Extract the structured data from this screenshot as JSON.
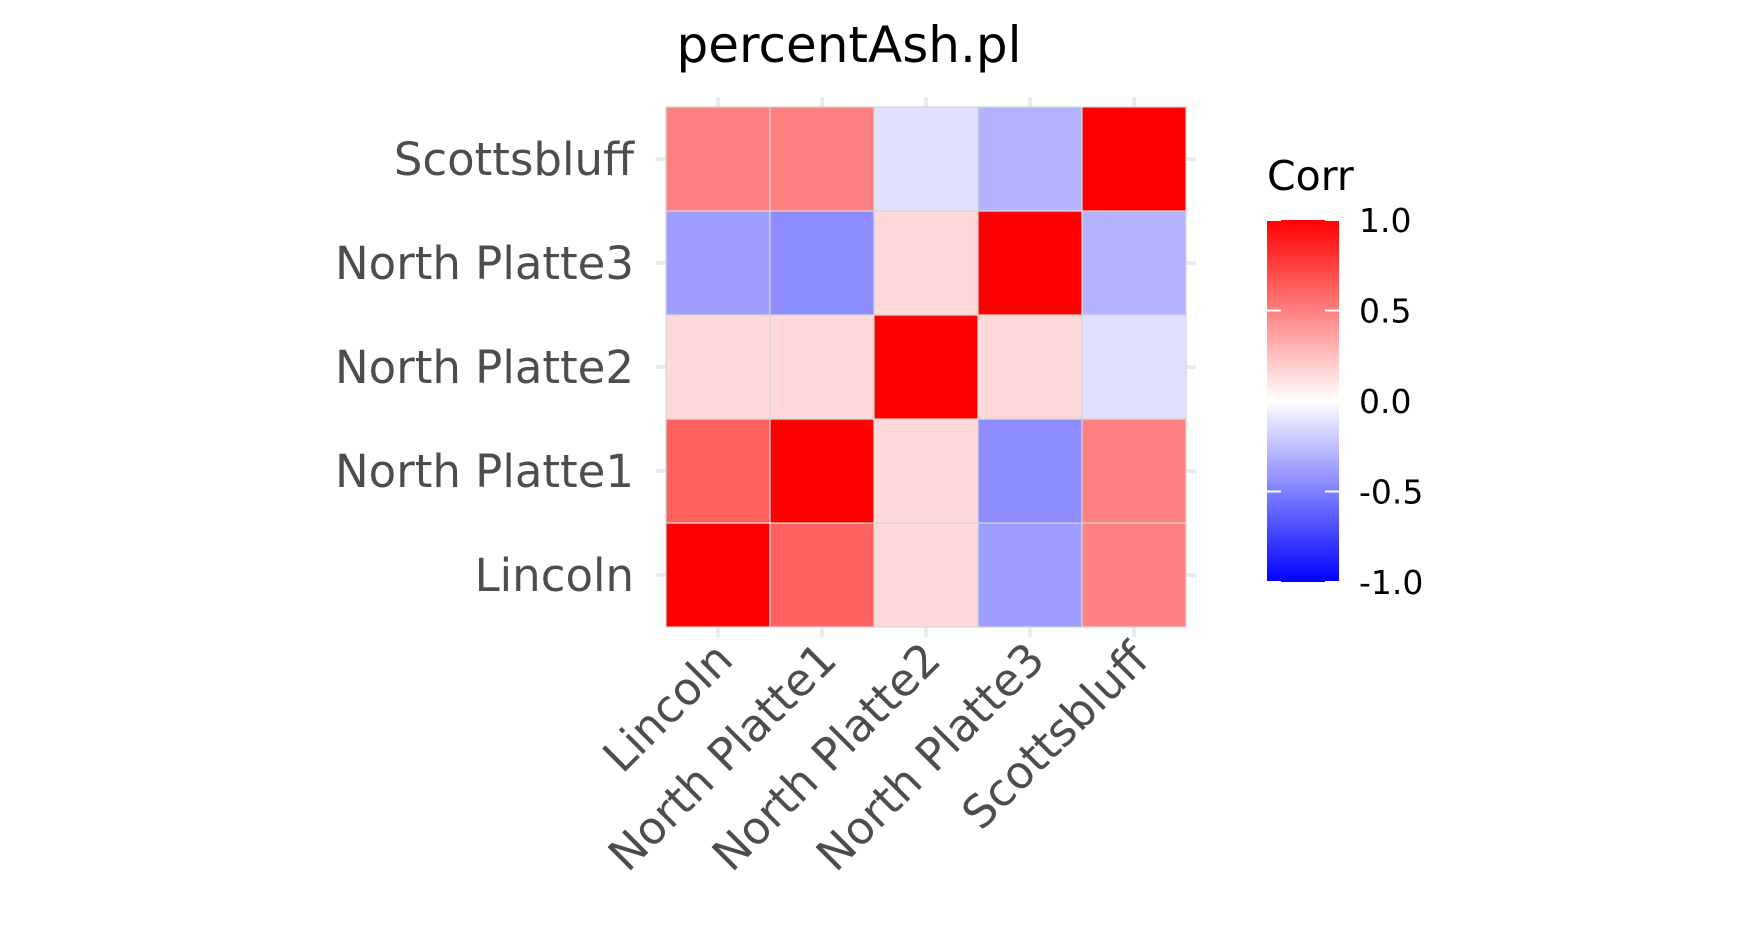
{
  "chart_data": {
    "type": "heatmap",
    "title": "percentAsh.pl",
    "x_categories": [
      "Lincoln",
      "North Platte1",
      "North Platte2",
      "North Platte3",
      "Scottsbluff"
    ],
    "y_categories": [
      "Lincoln",
      "North Platte1",
      "North Platte2",
      "North Platte3",
      "Scottsbluff"
    ],
    "values": [
      [
        1.0,
        0.62,
        0.15,
        -0.38,
        0.5
      ],
      [
        0.62,
        1.0,
        0.15,
        -0.45,
        0.5
      ],
      [
        0.15,
        0.15,
        1.0,
        0.15,
        -0.12
      ],
      [
        -0.38,
        -0.45,
        0.15,
        1.0,
        -0.3
      ],
      [
        0.5,
        0.5,
        -0.12,
        -0.3,
        1.0
      ]
    ],
    "legend": {
      "title": "Corr",
      "ticks": [
        "1.0",
        "0.5",
        "0.0",
        "-0.5",
        "-1.0"
      ],
      "tick_values": [
        1.0,
        0.5,
        0.0,
        -0.5,
        -1.0
      ],
      "range": [
        -1,
        1
      ],
      "position": "right"
    },
    "colors": {
      "low": "#0000ff",
      "mid": "#ffffff",
      "high": "#ff0000"
    },
    "grid": true
  }
}
